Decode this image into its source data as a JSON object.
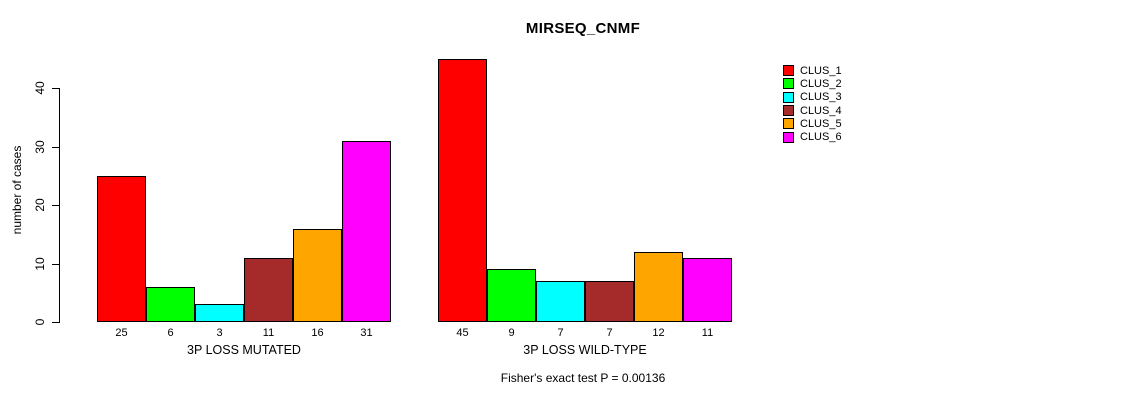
{
  "chart_data": {
    "type": "bar",
    "title": "MIRSEQ_CNMF",
    "ylabel": "number of cases",
    "ylim": [
      0,
      45
    ],
    "yticks": [
      0,
      10,
      20,
      30,
      40
    ],
    "grid": false,
    "legend_position": "right",
    "categories": [
      "3P LOSS MUTATED",
      "3P LOSS WILD-TYPE"
    ],
    "series": [
      {
        "name": "CLUS_1",
        "color": "#FF0000",
        "values": [
          25,
          45
        ]
      },
      {
        "name": "CLUS_2",
        "color": "#00FF00",
        "values": [
          6,
          9
        ]
      },
      {
        "name": "CLUS_3",
        "color": "#00FFFF",
        "values": [
          3,
          7
        ]
      },
      {
        "name": "CLUS_4",
        "color": "#A52A2A",
        "values": [
          11,
          7
        ]
      },
      {
        "name": "CLUS_5",
        "color": "#FFA500",
        "values": [
          16,
          12
        ]
      },
      {
        "name": "CLUS_6",
        "color": "#FF00FF",
        "values": [
          31,
          11
        ]
      }
    ],
    "bar_value_labels": true,
    "annotation": "Fisher's exact test P = 0.00136"
  },
  "colors": {
    "background": "#FFFFFF",
    "axis": "#000000",
    "text": "#000000",
    "bar_border": "#000000"
  }
}
